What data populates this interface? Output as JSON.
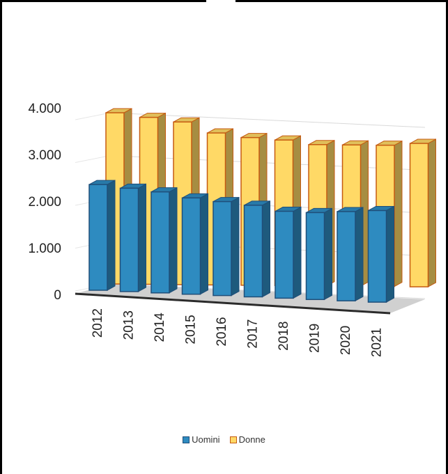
{
  "chart_data": {
    "type": "bar",
    "title": "",
    "xlabel": "",
    "ylabel": "",
    "categories": [
      "2012",
      "2013",
      "2014",
      "2015",
      "2016",
      "2017",
      "2018",
      "2019",
      "2020",
      "2021"
    ],
    "series": [
      {
        "name": "Uomini",
        "color": "#2E8BC0",
        "values": [
          2250,
          2200,
          2150,
          2050,
          2000,
          1950,
          1850,
          1850,
          1900,
          1950
        ]
      },
      {
        "name": "Donne",
        "color": "#FFD966",
        "values": [
          4000,
          3900,
          3800,
          3550,
          3450,
          3400,
          3300,
          3300,
          3300,
          3350
        ]
      }
    ],
    "ylim": [
      0,
      4000
    ],
    "yticks": [
      "0",
      "1.000",
      "2.000",
      "3.000",
      "4.000"
    ],
    "grid": true,
    "legend_position": "bottom"
  }
}
